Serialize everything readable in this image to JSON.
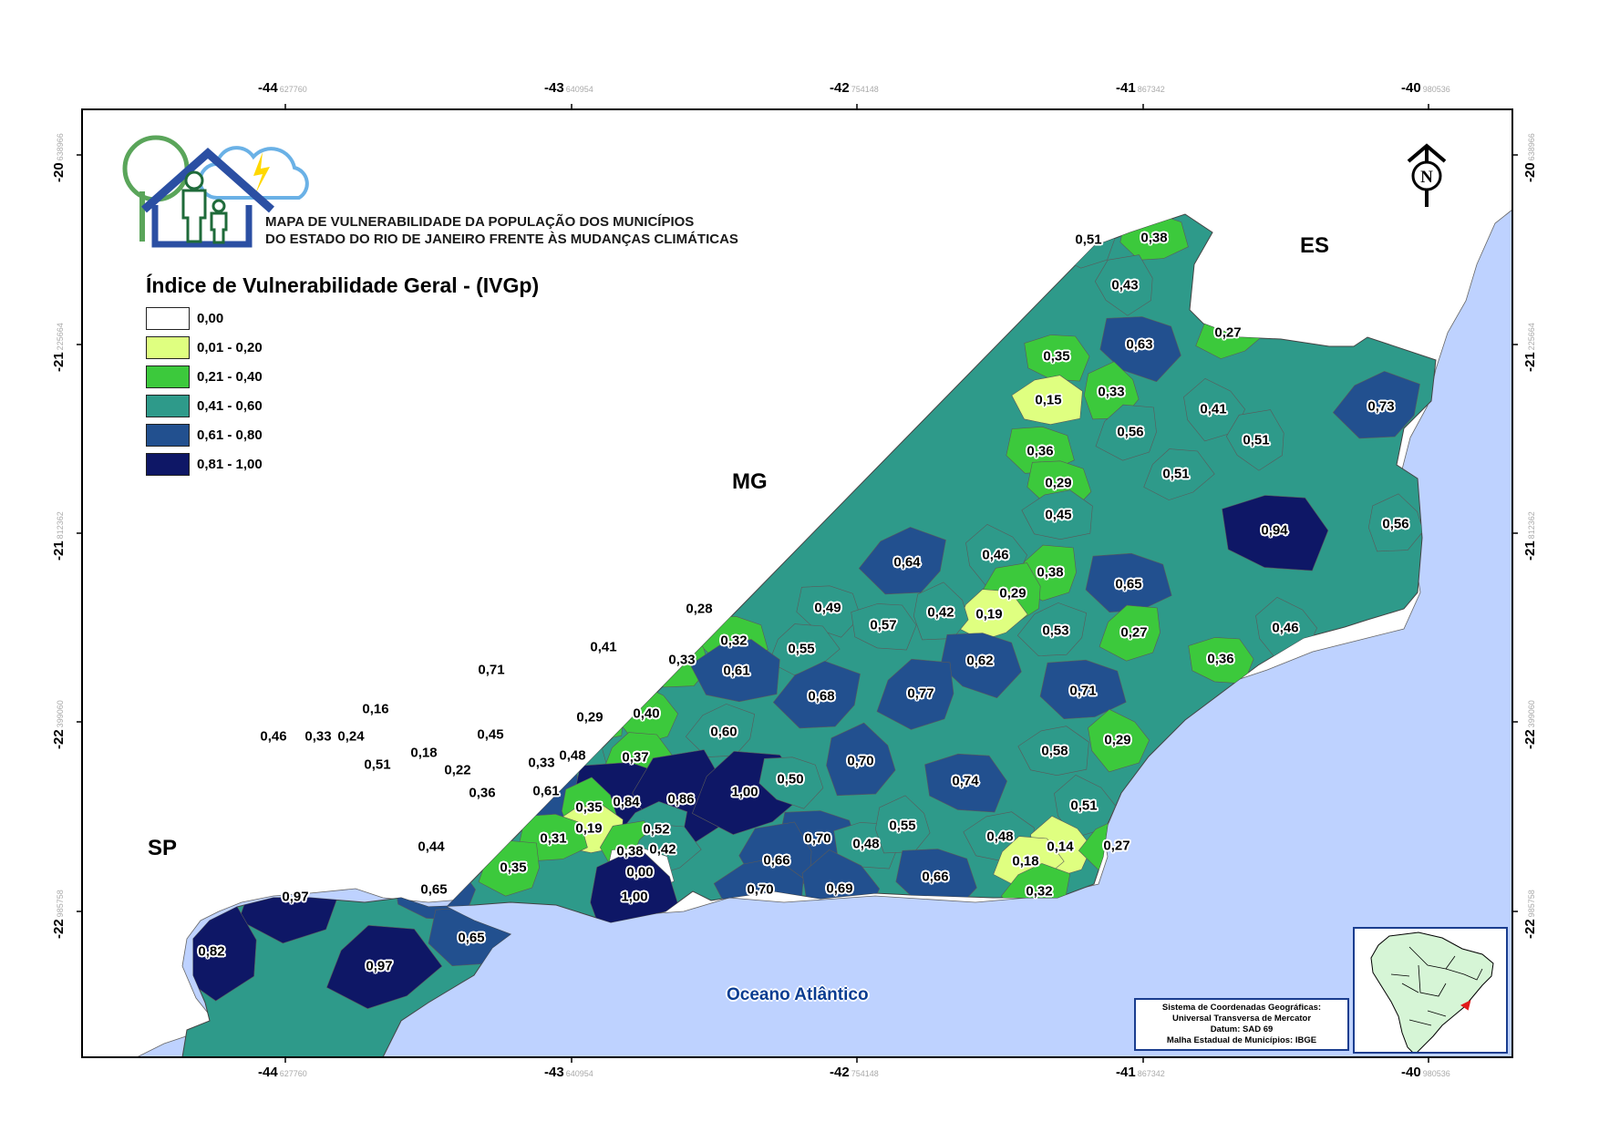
{
  "map_title": {
    "line1": "MAPA DE VULNERABILIDADE DA POPULAÇÃO DOS MUNICÍPIOS",
    "line2": "DO ESTADO DO RIO DE JANEIRO FRENTE ÀS MUDANÇAS CLIMÁTICAS"
  },
  "legend": {
    "title": "Índice de Vulnerabilidade Geral - (IVGp)",
    "classes": [
      {
        "label": "0,00",
        "color": "#ffffff"
      },
      {
        "label": "0,01 - 0,20",
        "color": "#dfff80"
      },
      {
        "label": "0,21 - 0,40",
        "color": "#3cc93c"
      },
      {
        "label": "0,41 - 0,60",
        "color": "#2e9a8a"
      },
      {
        "label": "0,61 - 0,80",
        "color": "#22508f"
      },
      {
        "label": "0,81 - 1,00",
        "color": "#0e1766"
      }
    ]
  },
  "graticule": {
    "top": [
      {
        "deg": "-44",
        "sub": "627760"
      },
      {
        "deg": "-43",
        "sub": "640954"
      },
      {
        "deg": "-42",
        "sub": "754148"
      },
      {
        "deg": "-41",
        "sub": "867342"
      },
      {
        "deg": "-40",
        "sub": "980536"
      }
    ],
    "bottom": [
      {
        "deg": "-44",
        "sub": "627760"
      },
      {
        "deg": "-43",
        "sub": "640954"
      },
      {
        "deg": "-42",
        "sub": "754148"
      },
      {
        "deg": "-41",
        "sub": "867342"
      },
      {
        "deg": "-40",
        "sub": "980536"
      }
    ],
    "left": [
      {
        "deg": "-20",
        "sub": "638966"
      },
      {
        "deg": "-21",
        "sub": "225664"
      },
      {
        "deg": "-21",
        "sub": "812362"
      },
      {
        "deg": "-22",
        "sub": "399060"
      },
      {
        "deg": "-22",
        "sub": "985758"
      }
    ],
    "right": [
      {
        "deg": "-20",
        "sub": "638966"
      },
      {
        "deg": "-21",
        "sub": "225664"
      },
      {
        "deg": "-21",
        "sub": "812362"
      },
      {
        "deg": "-22",
        "sub": "399060"
      },
      {
        "deg": "-22",
        "sub": "985758"
      }
    ]
  },
  "neighbors": {
    "mg": "MG",
    "es": "ES",
    "sp": "SP"
  },
  "ocean_label": "Oceano Atlântico",
  "north_arrow": "N",
  "coord_info": [
    "Sistema de Coordenadas Geográficas:",
    "Universal Transversa de Mercator",
    "Datum: SAD 69",
    "Malha Estadual de Municípios: IBGE"
  ],
  "colors": {
    "ocean": "#bed2ff",
    "border_frame": "#000000",
    "inset_frame": "#1a3d8f",
    "highlight": "#e11b1b"
  },
  "municipality_values": [
    "0,51",
    "0,38",
    "0,43",
    "0,27",
    "0,63",
    "0,35",
    "0,33",
    "0,15",
    "0,41",
    "0,73",
    "0,56",
    "0,36",
    "0,51",
    "0,51",
    "0,29",
    "0,94",
    "0,56",
    "0,45",
    "0,46",
    "0,64",
    "0,38",
    "0,65",
    "0,29",
    "0,19",
    "0,49",
    "0,57",
    "0,42",
    "0,28",
    "0,46",
    "0,53",
    "0,27",
    "0,32",
    "0,41",
    "0,55",
    "0,62",
    "0,36",
    "0,33",
    "0,61",
    "0,71",
    "0,68",
    "0,77",
    "0,71",
    "0,16",
    "0,46",
    "0,33",
    "0,24",
    "0,45",
    "0,29",
    "0,40",
    "0,60",
    "0,18",
    "0,48",
    "0,33",
    "0,37",
    "0,51",
    "0,22",
    "0,70",
    "0,58",
    "0,29",
    "0,36",
    "0,61",
    "0,84",
    "0,86",
    "1,00",
    "0,50",
    "0,74",
    "0,35",
    "0,19",
    "0,51",
    "0,52",
    "0,44",
    "0,31",
    "0,38",
    "0,42",
    "0,70",
    "0,48",
    "0,55",
    "0,48",
    "0,14",
    "0,27",
    "0,35",
    "0,00",
    "0,66",
    "0,18",
    "0,66",
    "0,65",
    "1,00",
    "0,70",
    "0,69",
    "0,32",
    "0,97",
    "0,65",
    "0,82",
    "0,97"
  ]
}
